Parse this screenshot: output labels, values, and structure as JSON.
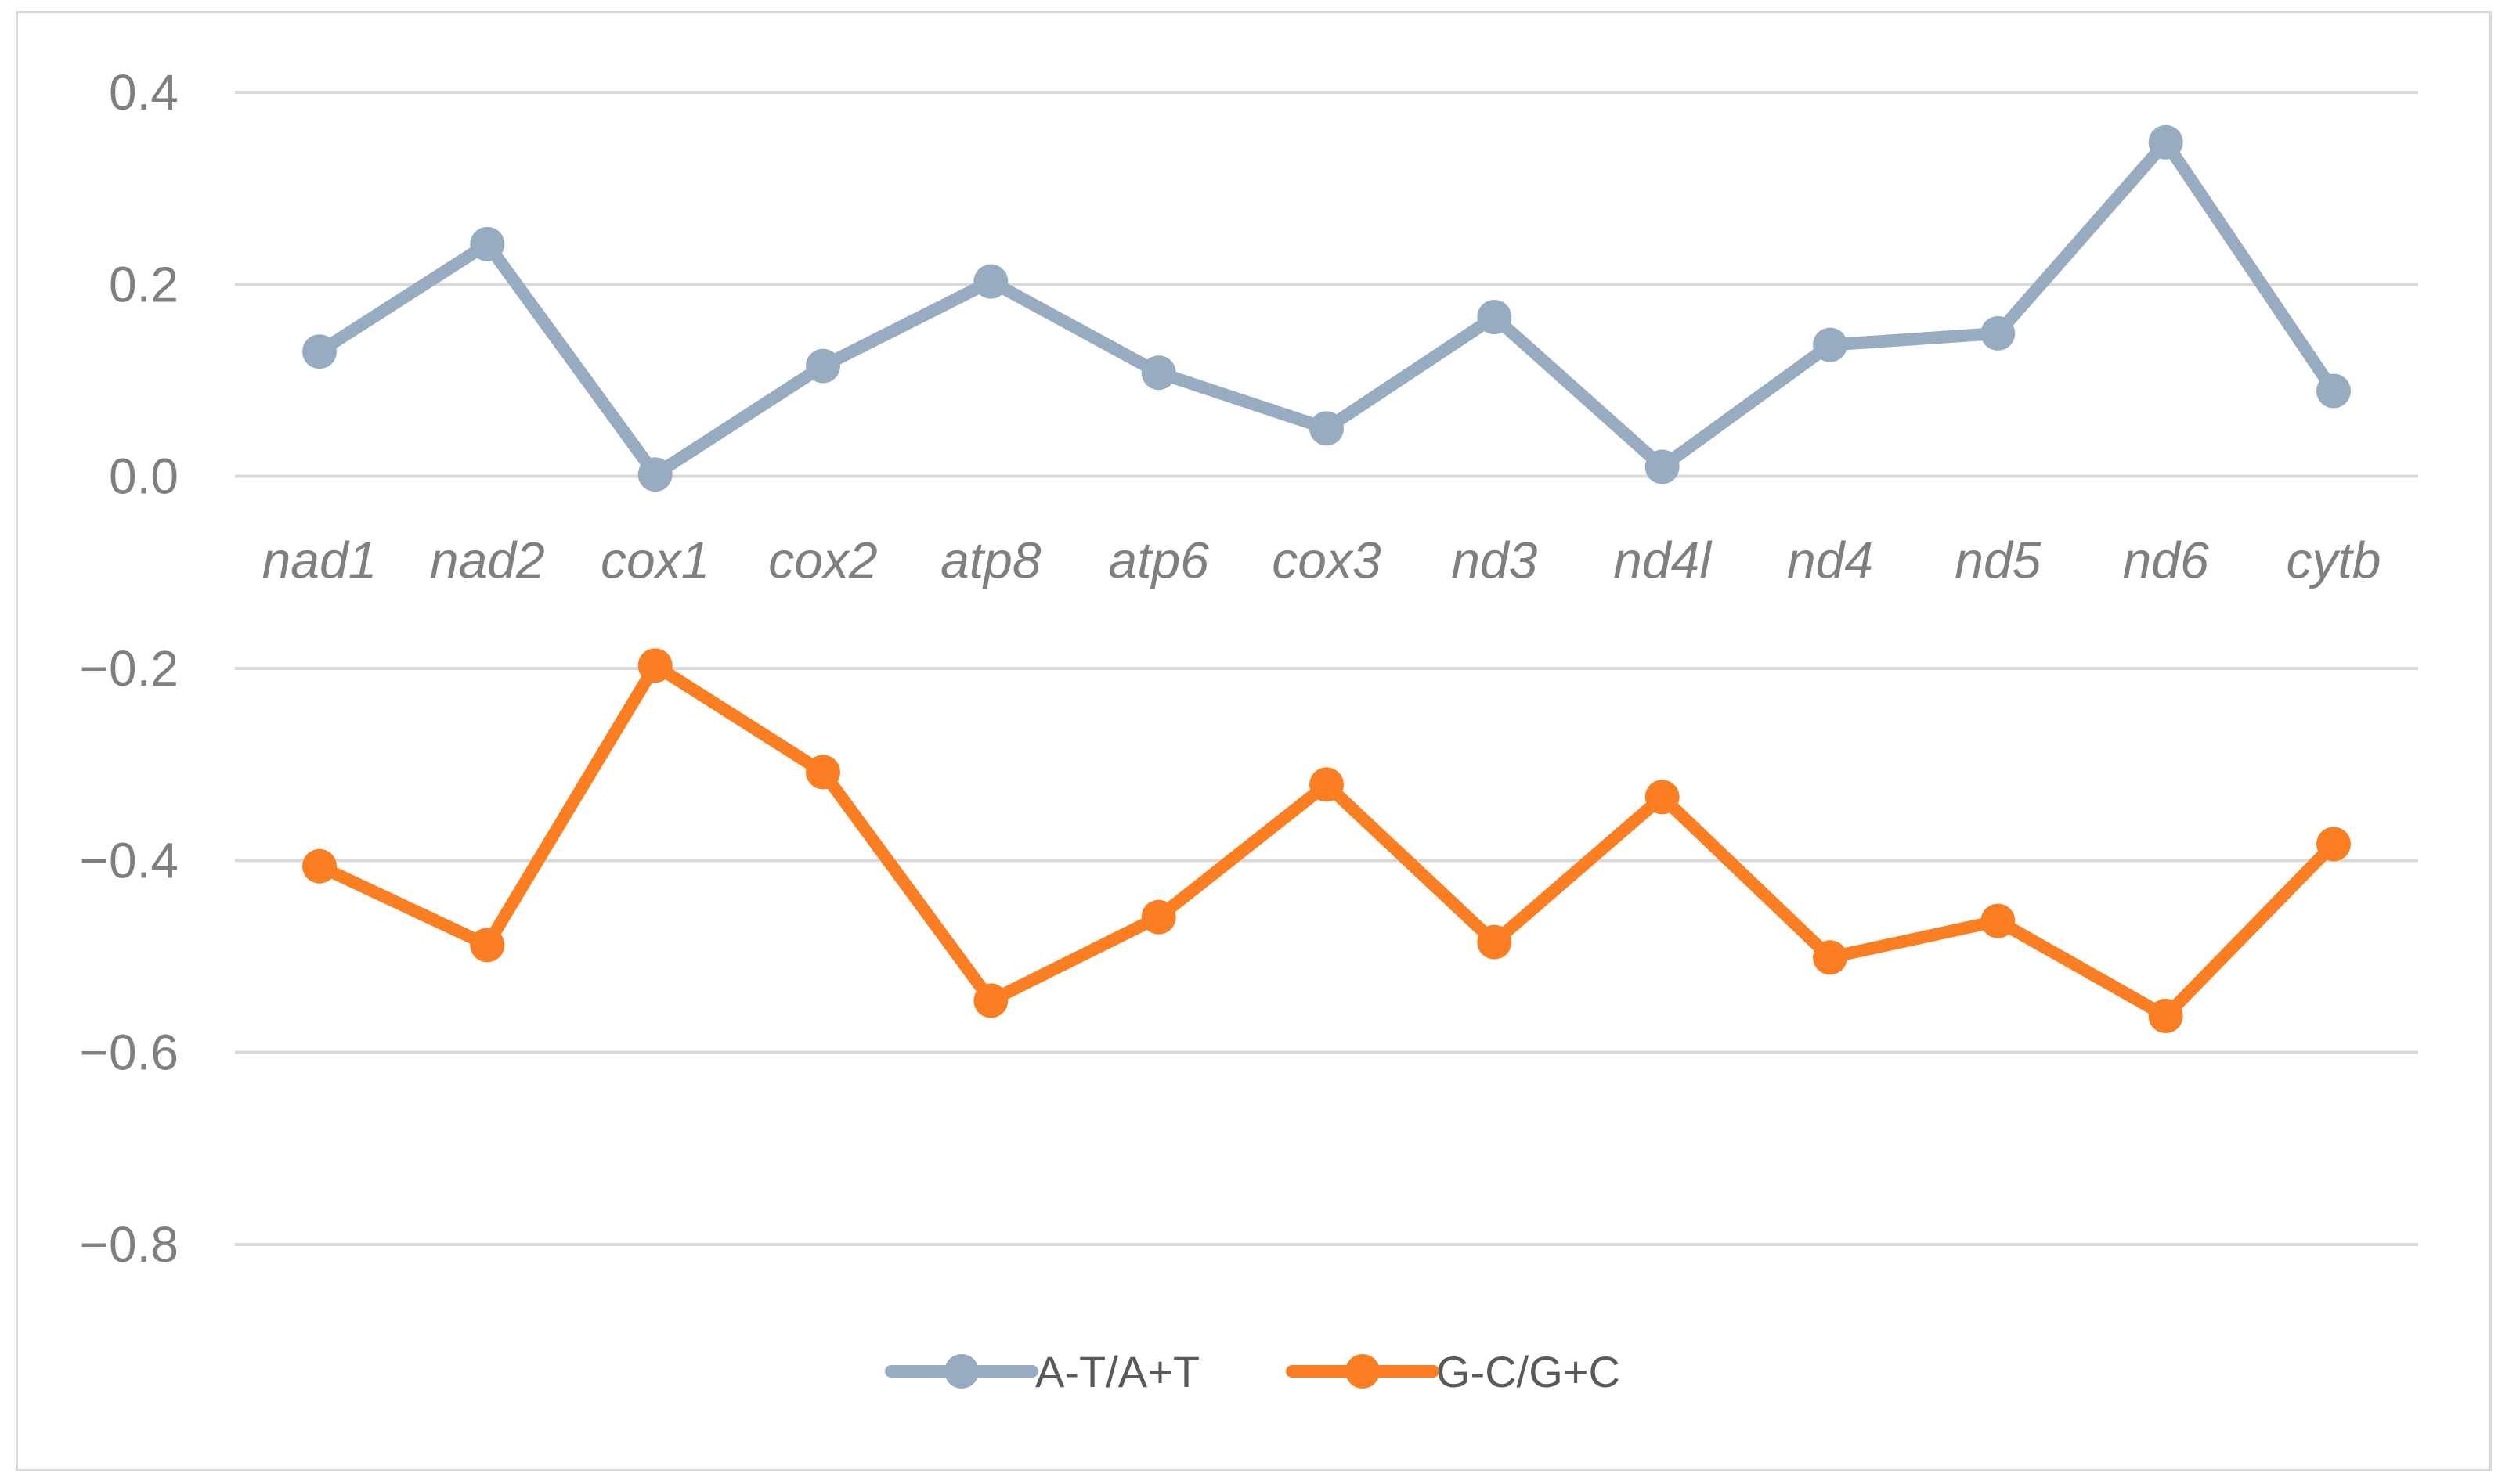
{
  "chart_data": {
    "type": "line",
    "categories": [
      "nad1",
      "nad2",
      "cox1",
      "cox2",
      "atp8",
      "atp6",
      "cox3",
      "nd3",
      "nd4l",
      "nd4",
      "nd5",
      "nd6",
      "cytb"
    ],
    "series": [
      {
        "name": "A-T/A+T",
        "color": "#97abc1",
        "values": [
          0.13,
          0.242,
          0.002,
          0.115,
          0.203,
          0.108,
          0.05,
          0.166,
          0.01,
          0.137,
          0.149,
          0.348,
          0.089
        ]
      },
      {
        "name": "G-C/G+C",
        "color": "#fb7e22",
        "values": [
          -0.406,
          -0.488,
          -0.197,
          -0.308,
          -0.546,
          -0.459,
          -0.321,
          -0.485,
          -0.334,
          -0.501,
          -0.463,
          -0.562,
          -0.383
        ]
      }
    ],
    "y_ticks": [
      "0.4",
      "0.2",
      "0.0",
      "−0.2",
      "−0.4",
      "−0.6",
      "−0.8"
    ],
    "ylim": [
      -0.8,
      0.4
    ],
    "grid": true,
    "legend_position": "bottom-center",
    "title": "",
    "xlabel": "",
    "ylabel": ""
  }
}
